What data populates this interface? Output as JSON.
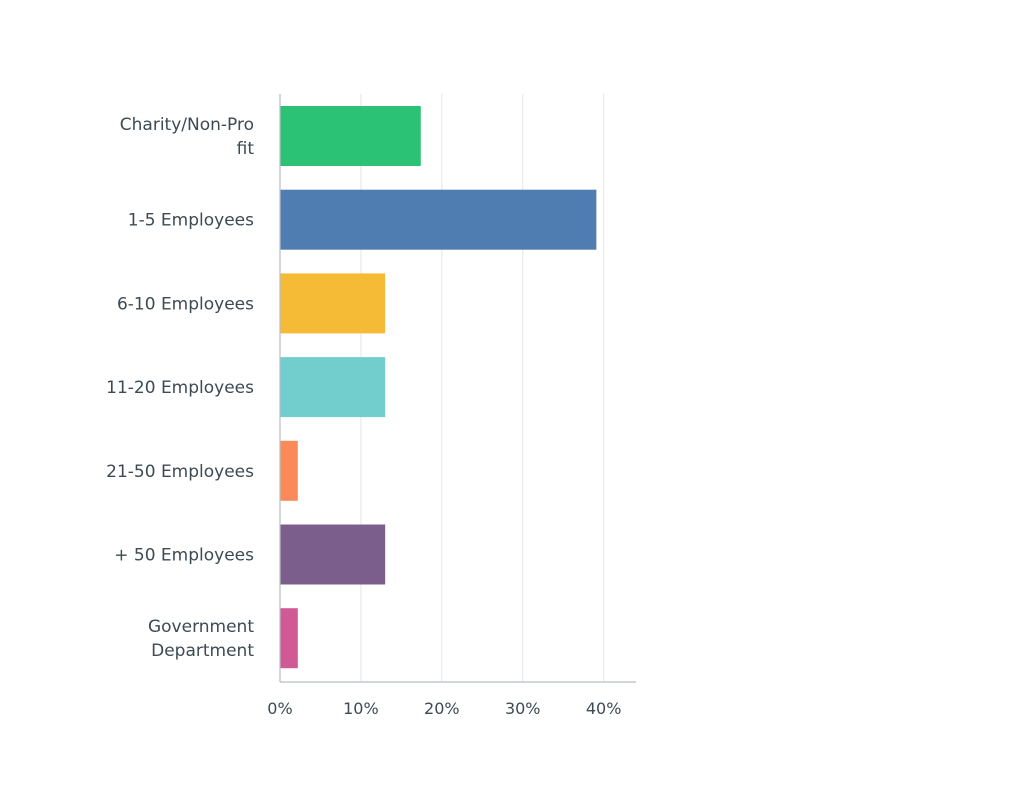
{
  "chart_data": {
    "type": "bar",
    "orientation": "horizontal",
    "title": "",
    "xlabel": "",
    "ylabel": "",
    "categories": [
      "Charity/Non-Profit",
      "1-5 Employees",
      "6-10 Employees",
      "11-20 Employees",
      "21-50 Employees",
      "+ 50 Employees",
      "Government Department"
    ],
    "category_label_lines": [
      [
        "Charity/Non-Pro",
        "fit"
      ],
      [
        "1-5 Employees"
      ],
      [
        "6-10 Employees"
      ],
      [
        "11-20 Employees"
      ],
      [
        "21-50 Employees"
      ],
      [
        "+ 50 Employees"
      ],
      [
        "Government",
        "Department"
      ]
    ],
    "values": [
      17.4,
      39.1,
      13.0,
      13.0,
      2.2,
      13.0,
      2.2
    ],
    "colors": [
      "#2bc276",
      "#507db1",
      "#f6bb36",
      "#72cdcd",
      "#fb8a5a",
      "#7c5e8c",
      "#d15995"
    ],
    "xlim": [
      0,
      44
    ],
    "xticks": [
      0,
      10,
      20,
      30,
      40
    ],
    "xtick_labels": [
      "0%",
      "10%",
      "20%",
      "30%",
      "40%"
    ],
    "grid": true,
    "legend": "none"
  }
}
